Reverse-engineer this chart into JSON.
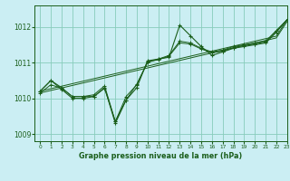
{
  "title": "Graphe pression niveau de la mer (hPa)",
  "bg_color": "#cbeef3",
  "line_color": "#1a5e1a",
  "grid_color": "#88ccbb",
  "xlim": [
    -0.5,
    23
  ],
  "ylim": [
    1008.8,
    1012.6
  ],
  "xticks": [
    0,
    1,
    2,
    3,
    4,
    5,
    6,
    7,
    8,
    9,
    10,
    11,
    12,
    13,
    14,
    15,
    16,
    17,
    18,
    19,
    20,
    21,
    22,
    23
  ],
  "yticks": [
    1009,
    1010,
    1011,
    1012
  ],
  "series_main": [
    1010.2,
    1010.5,
    1010.25,
    1010.0,
    1010.0,
    1010.05,
    1010.3,
    1009.3,
    1009.95,
    1010.3,
    1011.05,
    1011.1,
    1011.15,
    1012.05,
    1011.75,
    1011.45,
    1011.2,
    1011.3,
    1011.4,
    1011.45,
    1011.5,
    1011.55,
    1011.85,
    1012.2
  ],
  "series_trend1": [
    1010.2,
    1010.5,
    1010.3,
    1010.05,
    1010.05,
    1010.1,
    1010.35,
    1009.35,
    1009.95,
    1010.4,
    1011.0,
    1011.1,
    1011.2,
    1011.6,
    1011.55,
    1011.4,
    1011.3,
    1011.35,
    1011.45,
    1011.5,
    1011.55,
    1011.6,
    1011.9,
    1012.2
  ],
  "series_trend2": [
    1010.15,
    1010.38,
    1010.28,
    1010.05,
    1010.05,
    1010.05,
    1010.28,
    1009.35,
    1010.05,
    1010.38,
    1011.02,
    1011.08,
    1011.18,
    1011.55,
    1011.52,
    1011.38,
    1011.28,
    1011.32,
    1011.42,
    1011.48,
    1011.52,
    1011.58,
    1011.88,
    1012.2
  ],
  "series_diag1": [
    1010.2,
    1010.27,
    1010.34,
    1010.41,
    1010.48,
    1010.55,
    1010.62,
    1010.69,
    1010.76,
    1010.83,
    1010.9,
    1010.97,
    1011.04,
    1011.11,
    1011.18,
    1011.25,
    1011.32,
    1011.39,
    1011.46,
    1011.53,
    1011.6,
    1011.67,
    1011.74,
    1012.2
  ],
  "series_diag2": [
    1010.15,
    1010.22,
    1010.29,
    1010.36,
    1010.43,
    1010.5,
    1010.57,
    1010.64,
    1010.71,
    1010.78,
    1010.85,
    1010.92,
    1010.99,
    1011.06,
    1011.13,
    1011.2,
    1011.27,
    1011.34,
    1011.41,
    1011.48,
    1011.55,
    1011.62,
    1011.69,
    1012.15
  ]
}
